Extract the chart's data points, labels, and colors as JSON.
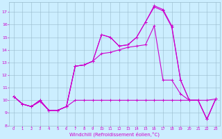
{
  "xlabel": "Windchill (Refroidissement éolien,°C)",
  "xlim": [
    -0.5,
    23.5
  ],
  "ylim": [
    8.0,
    17.8
  ],
  "yticks": [
    8,
    9,
    10,
    11,
    12,
    13,
    14,
    15,
    16,
    17
  ],
  "xticks": [
    0,
    1,
    2,
    3,
    4,
    5,
    6,
    7,
    8,
    9,
    10,
    11,
    12,
    13,
    14,
    15,
    16,
    17,
    18,
    19,
    20,
    21,
    22,
    23
  ],
  "bg_color": "#cceeff",
  "line_color": "#cc00cc",
  "grid_color": "#99bbcc",
  "lines": [
    [
      10.3,
      9.7,
      9.5,
      9.9,
      9.2,
      9.2,
      9.5,
      10.0,
      10.0,
      10.0,
      10.0,
      10.0,
      10.0,
      10.0,
      10.0,
      10.0,
      10.0,
      10.0,
      10.0,
      10.0,
      10.0,
      10.0,
      10.0,
      10.1
    ],
    [
      10.3,
      9.7,
      9.5,
      10.0,
      9.2,
      9.2,
      9.5,
      12.7,
      12.8,
      13.1,
      13.7,
      13.8,
      14.0,
      14.2,
      14.3,
      14.4,
      15.9,
      11.6,
      11.6,
      10.5,
      10.0,
      10.0,
      8.5,
      10.1
    ],
    [
      10.3,
      9.7,
      9.5,
      10.0,
      9.2,
      9.2,
      9.5,
      12.7,
      12.8,
      13.1,
      15.2,
      15.0,
      14.3,
      14.4,
      15.0,
      16.2,
      17.4,
      17.1,
      15.8,
      11.6,
      10.0,
      10.0,
      8.5,
      10.1
    ],
    [
      10.3,
      9.7,
      9.5,
      10.0,
      9.2,
      9.2,
      9.5,
      12.7,
      12.8,
      13.1,
      15.2,
      15.0,
      14.3,
      14.4,
      15.0,
      16.2,
      17.5,
      17.2,
      15.9,
      11.6,
      10.0,
      10.0,
      8.5,
      10.1
    ]
  ]
}
